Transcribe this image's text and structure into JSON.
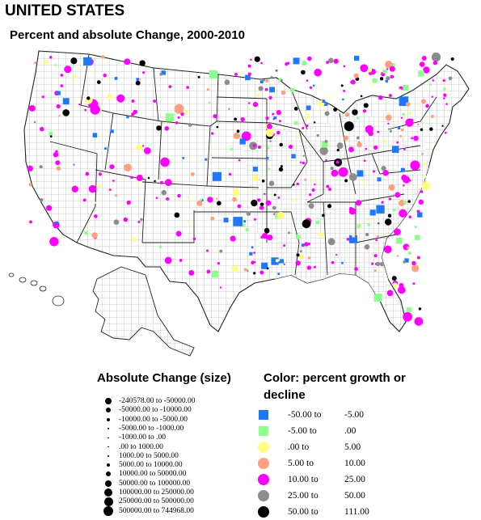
{
  "title": "UNITED STATES",
  "subtitle": "Percent and absolute Change, 2000-2010",
  "size_legend": {
    "title": "Absolute Change (size)",
    "items": [
      {
        "from": "-240578.00",
        "to": "-50000.00",
        "dot": 4
      },
      {
        "from": "-50000.00",
        "to": "-10000.00",
        "dot": 3
      },
      {
        "from": "-10000.00",
        "to": "-5000.00",
        "dot": 2
      },
      {
        "from": "-5000.00",
        "to": "-1000.00",
        "dot": 1.2
      },
      {
        "from": "-1000.00",
        "to": ".00",
        "dot": 0.6
      },
      {
        "from": ".00",
        "to": "1000.00",
        "dot": 0.6
      },
      {
        "from": "1000.00",
        "to": "5000.00",
        "dot": 1.2
      },
      {
        "from": "5000.00",
        "to": "10000.00",
        "dot": 2
      },
      {
        "from": "10000.00",
        "to": "50000.00",
        "dot": 3
      },
      {
        "from": "50000.00",
        "to": "100000.00",
        "dot": 4
      },
      {
        "from": "100000.00",
        "to": "250000.00",
        "dot": 5
      },
      {
        "from": "250000.00",
        "to": "500000.00",
        "dot": 5.5
      },
      {
        "from": "500000.00",
        "to": "744968.00",
        "dot": 6
      }
    ]
  },
  "color_legend": {
    "title": "Color: percent growth or decline",
    "items": [
      {
        "from": "-50.00 to",
        "to": "-5.00",
        "color": "#1e78ff",
        "shape": "square"
      },
      {
        "from": "-5.00 to",
        "to": ".00",
        "color": "#8cff8c",
        "shape": "square"
      },
      {
        "from": ".00 to",
        "to": "5.00",
        "color": "#ffff80",
        "shape": "circle"
      },
      {
        "from": "5.00 to",
        "to": "10.00",
        "color": "#ffa080",
        "shape": "circle"
      },
      {
        "from": "10.00 to",
        "to": "25.00",
        "color": "#ff00ff",
        "shape": "circle"
      },
      {
        "from": "25.00 to",
        "to": "50.00",
        "color": "#8c8c8c",
        "shape": "circle"
      },
      {
        "from": "50.00 to",
        "to": "111.00",
        "color": "#000000",
        "shape": "circle"
      }
    ]
  }
}
